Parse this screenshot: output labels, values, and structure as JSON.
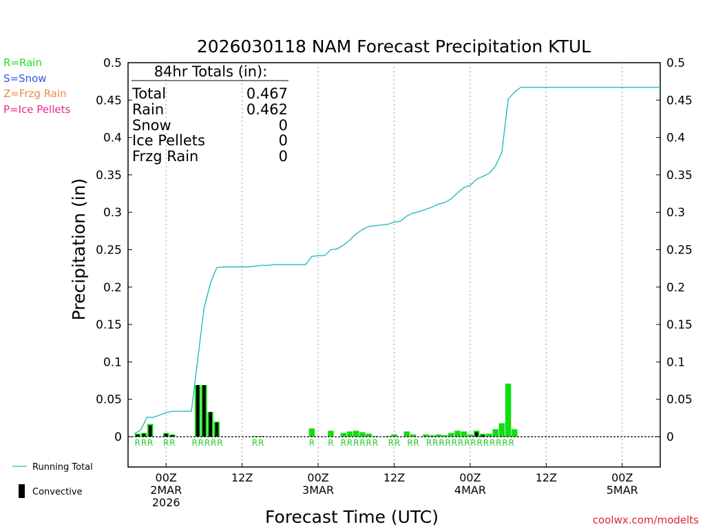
{
  "chart_data": {
    "type": "bar",
    "title": "2026030118 NAM Forecast Precipitation KTUL",
    "xlabel": "Forecast Time (UTC)",
    "ylabel": "Precipitation (in)",
    "ylim": [
      0,
      0.5
    ],
    "yticks": [
      0,
      0.05,
      0.1,
      0.15,
      0.2,
      0.25,
      0.3,
      0.35,
      0.4,
      0.45,
      0.5
    ],
    "ytick_labels": [
      "0",
      "0.05",
      "0.1",
      "0.15",
      "0.2",
      "0.25",
      "0.3",
      "0.35",
      "0.4",
      "0.45",
      "0.5"
    ],
    "x_unit": "forecast hour",
    "xlim": [
      0,
      84
    ],
    "xticks": [
      {
        "hour": 6,
        "lines": [
          "00Z",
          "2MAR",
          "2026"
        ]
      },
      {
        "hour": 18,
        "lines": [
          "12Z"
        ]
      },
      {
        "hour": 30,
        "lines": [
          "00Z",
          "3MAR"
        ]
      },
      {
        "hour": 42,
        "lines": [
          "12Z"
        ]
      },
      {
        "hour": 54,
        "lines": [
          "00Z",
          "4MAR"
        ]
      },
      {
        "hour": 66,
        "lines": [
          "12Z"
        ]
      },
      {
        "hour": 78,
        "lines": [
          "00Z",
          "5MAR"
        ]
      }
    ],
    "legend_types": [
      {
        "label": "R=Rain",
        "color": "#22dd22"
      },
      {
        "label": "S=Snow",
        "color": "#3355ee"
      },
      {
        "label": "Z=Frzg Rain",
        "color": "#ee8844"
      },
      {
        "label": "P=Ice Pellets",
        "color": "#ee2288"
      }
    ],
    "legend_series": [
      {
        "label": "Running Total",
        "color": "#22bbbb"
      },
      {
        "label": "Convective",
        "color": "#000000"
      }
    ],
    "totals": {
      "heading": "84hr Totals (in):",
      "rows": [
        {
          "label": "Total",
          "value": "0.467"
        },
        {
          "label": "Rain",
          "value": "0.462"
        },
        {
          "label": "Snow",
          "value": "0"
        },
        {
          "label": "Ice Pellets",
          "value": "0"
        },
        {
          "label": "Frzg Rain",
          "value": "0"
        }
      ]
    },
    "bars": [
      {
        "hour": 1.5,
        "value": 0.004,
        "convective": 0.003,
        "type": "R"
      },
      {
        "hour": 2.5,
        "value": 0.005,
        "convective": 0.004,
        "type": "R"
      },
      {
        "hour": 3.5,
        "value": 0.017,
        "convective": 0.015,
        "type": "R"
      },
      {
        "hour": 6.0,
        "value": 0.005,
        "convective": 0.004,
        "type": "R"
      },
      {
        "hour": 7.0,
        "value": 0.003,
        "convective": 0.002,
        "type": "R"
      },
      {
        "hour": 11.0,
        "value": 0.069,
        "convective": 0.069,
        "type": "R"
      },
      {
        "hour": 12.0,
        "value": 0.069,
        "convective": 0.069,
        "type": "R"
      },
      {
        "hour": 13.0,
        "value": 0.033,
        "convective": 0.033,
        "type": "R"
      },
      {
        "hour": 14.0,
        "value": 0.02,
        "convective": 0.019,
        "type": "R"
      },
      {
        "hour": 20.0,
        "value": 0.001,
        "convective": 0,
        "type": "R"
      },
      {
        "hour": 21.0,
        "value": 0.001,
        "convective": 0,
        "type": "R"
      },
      {
        "hour": 29.0,
        "value": 0.011,
        "convective": 0,
        "type": "R"
      },
      {
        "hour": 32.0,
        "value": 0.008,
        "convective": 0,
        "type": "R"
      },
      {
        "hour": 34.0,
        "value": 0.005,
        "convective": 0,
        "type": "R"
      },
      {
        "hour": 35.0,
        "value": 0.007,
        "convective": 0,
        "type": "R"
      },
      {
        "hour": 36.0,
        "value": 0.008,
        "convective": 0,
        "type": "R"
      },
      {
        "hour": 37.0,
        "value": 0.006,
        "convective": 0,
        "type": "R"
      },
      {
        "hour": 38.0,
        "value": 0.004,
        "convective": 0,
        "type": "R"
      },
      {
        "hour": 39.0,
        "value": 0.001,
        "convective": 0,
        "type": "R"
      },
      {
        "hour": 41.0,
        "value": 0.001,
        "convective": 0,
        "type": "R"
      },
      {
        "hour": 42.0,
        "value": 0.003,
        "convective": 0,
        "type": "R"
      },
      {
        "hour": 44.0,
        "value": 0.007,
        "convective": 0,
        "type": "R"
      },
      {
        "hour": 45.0,
        "value": 0.003,
        "convective": 0,
        "type": "R"
      },
      {
        "hour": 47.0,
        "value": 0.003,
        "convective": 0,
        "type": "R"
      },
      {
        "hour": 48.0,
        "value": 0.002,
        "convective": 0,
        "type": "R"
      },
      {
        "hour": 49.0,
        "value": 0.003,
        "convective": 0,
        "type": "R"
      },
      {
        "hour": 50.0,
        "value": 0.002,
        "convective": 0,
        "type": "R"
      },
      {
        "hour": 51.0,
        "value": 0.005,
        "convective": 0,
        "type": "R"
      },
      {
        "hour": 52.0,
        "value": 0.008,
        "convective": 0,
        "type": "R"
      },
      {
        "hour": 53.0,
        "value": 0.007,
        "convective": 0,
        "type": "R"
      },
      {
        "hour": 54.0,
        "value": 0.003,
        "convective": 0,
        "type": "R"
      },
      {
        "hour": 55.0,
        "value": 0.008,
        "convective": 0.006,
        "type": "R"
      },
      {
        "hour": 56.0,
        "value": 0.004,
        "convective": 0.002,
        "type": "R"
      },
      {
        "hour": 57.0,
        "value": 0.004,
        "convective": 0,
        "type": "R"
      },
      {
        "hour": 58.0,
        "value": 0.01,
        "convective": 0,
        "type": "R"
      },
      {
        "hour": 59.0,
        "value": 0.018,
        "convective": 0,
        "type": "R"
      },
      {
        "hour": 60.0,
        "value": 0.071,
        "convective": 0,
        "type": "R"
      },
      {
        "hour": 61.0,
        "value": 0.01,
        "convective": 0,
        "type": "R"
      }
    ],
    "type_labels": [
      {
        "hour": 1.5,
        "text": "R"
      },
      {
        "hour": 2.5,
        "text": "R"
      },
      {
        "hour": 3.5,
        "text": "R"
      },
      {
        "hour": 6.0,
        "text": "R"
      },
      {
        "hour": 7.0,
        "text": "R"
      },
      {
        "hour": 10.5,
        "text": "R"
      },
      {
        "hour": 11.5,
        "text": "R"
      },
      {
        "hour": 12.5,
        "text": "R"
      },
      {
        "hour": 13.5,
        "text": "R"
      },
      {
        "hour": 14.5,
        "text": "R"
      },
      {
        "hour": 20.0,
        "text": "R"
      },
      {
        "hour": 21.0,
        "text": "R"
      },
      {
        "hour": 29.0,
        "text": "R"
      },
      {
        "hour": 32.0,
        "text": "R"
      },
      {
        "hour": 34.0,
        "text": "R"
      },
      {
        "hour": 35.0,
        "text": "R"
      },
      {
        "hour": 36.0,
        "text": "R"
      },
      {
        "hour": 37.0,
        "text": "R"
      },
      {
        "hour": 38.0,
        "text": "R"
      },
      {
        "hour": 39.0,
        "text": "R"
      },
      {
        "hour": 41.5,
        "text": "R"
      },
      {
        "hour": 42.5,
        "text": "R"
      },
      {
        "hour": 44.5,
        "text": "R"
      },
      {
        "hour": 45.5,
        "text": "R"
      },
      {
        "hour": 47.5,
        "text": "R"
      },
      {
        "hour": 48.5,
        "text": "R"
      },
      {
        "hour": 49.5,
        "text": "R"
      },
      {
        "hour": 50.5,
        "text": "R"
      },
      {
        "hour": 51.5,
        "text": "R"
      },
      {
        "hour": 52.5,
        "text": "R"
      },
      {
        "hour": 53.5,
        "text": "R"
      },
      {
        "hour": 54.5,
        "text": "R"
      },
      {
        "hour": 55.5,
        "text": "R"
      },
      {
        "hour": 56.5,
        "text": "R"
      },
      {
        "hour": 57.5,
        "text": "R"
      },
      {
        "hour": 58.5,
        "text": "R"
      },
      {
        "hour": 59.5,
        "text": "R"
      },
      {
        "hour": 60.5,
        "text": "R"
      }
    ],
    "running_total": {
      "x": [
        1,
        2,
        3,
        4,
        5,
        6,
        7,
        8,
        9,
        10,
        11,
        12,
        13,
        14,
        15,
        16,
        17,
        18,
        19,
        20,
        21,
        22,
        23,
        24,
        25,
        26,
        27,
        28,
        29,
        30,
        31,
        32,
        33,
        34,
        35,
        36,
        37,
        38,
        39,
        40,
        41,
        42,
        43,
        44,
        45,
        46,
        47,
        48,
        49,
        50,
        51,
        52,
        53,
        54,
        55,
        56,
        57,
        58,
        59,
        60,
        61,
        62,
        63,
        64,
        65,
        66,
        67,
        68,
        69,
        70,
        71,
        72,
        73,
        74,
        75,
        76,
        77,
        78,
        79,
        80,
        81,
        82,
        83,
        84
      ],
      "y": [
        0.004,
        0.009,
        0.026,
        0.026,
        0.029,
        0.032,
        0.034,
        0.034,
        0.034,
        0.034,
        0.103,
        0.172,
        0.205,
        0.226,
        0.227,
        0.227,
        0.227,
        0.227,
        0.227,
        0.228,
        0.229,
        0.229,
        0.23,
        0.23,
        0.23,
        0.23,
        0.23,
        0.23,
        0.241,
        0.242,
        0.242,
        0.25,
        0.251,
        0.256,
        0.263,
        0.271,
        0.277,
        0.281,
        0.282,
        0.283,
        0.284,
        0.287,
        0.288,
        0.295,
        0.299,
        0.301,
        0.304,
        0.307,
        0.311,
        0.313,
        0.318,
        0.326,
        0.333,
        0.336,
        0.344,
        0.348,
        0.352,
        0.362,
        0.38,
        0.451,
        0.461,
        0.467,
        0.467,
        0.467,
        0.467,
        0.467,
        0.467,
        0.467,
        0.467,
        0.467,
        0.467,
        0.467,
        0.467,
        0.467,
        0.467,
        0.467,
        0.467,
        0.467,
        0.467,
        0.467,
        0.467,
        0.467,
        0.467,
        0.467
      ]
    },
    "colors": {
      "rain": "#11dd11",
      "running_total": "#22bbbb",
      "grid": "#999999",
      "credit": "#dd2233"
    },
    "credit": "coolwx.com/modelts"
  }
}
